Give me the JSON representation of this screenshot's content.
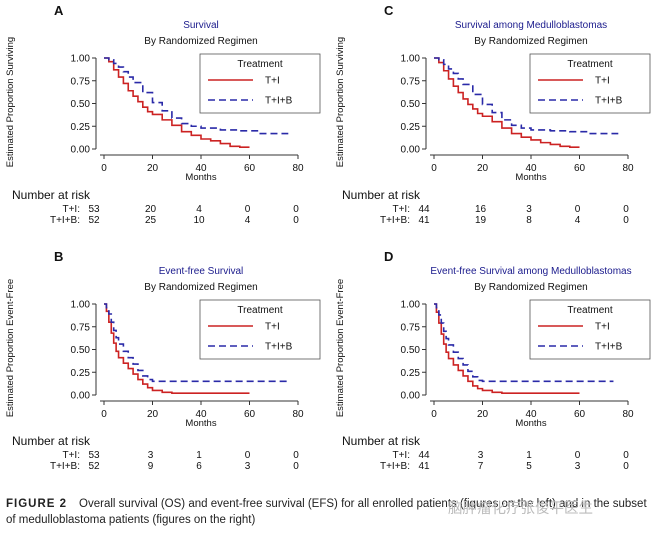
{
  "legend_title": "Treatment",
  "x_axis_label": "Months",
  "risk_title": "Number at risk",
  "colors": {
    "ti": "#cc2222",
    "tib": "#2a2aa8",
    "axis": "#333333"
  },
  "chart_data": [
    {
      "type": "line",
      "panel": "A",
      "title": "Survival",
      "subtitle": "By Randomized Regimen",
      "ylabel": "Estimated Proportion Surviving",
      "xlabel": "Months",
      "xlim": [
        0,
        80
      ],
      "ylim": [
        0,
        1
      ],
      "xticks": [
        "0",
        "20",
        "40",
        "60",
        "80"
      ],
      "yticks": [
        "0.00",
        "0.25",
        "0.50",
        "0.75",
        "1.00"
      ],
      "series": [
        {
          "name": "T+I",
          "label": "T+I:",
          "risk": [
            "53",
            "20",
            "4",
            "0",
            "0"
          ],
          "x": [
            0,
            2,
            4,
            6,
            8,
            10,
            12,
            14,
            16,
            18,
            20,
            24,
            28,
            32,
            36,
            40,
            44,
            48,
            52,
            56,
            60
          ],
          "y": [
            1.0,
            0.96,
            0.87,
            0.79,
            0.72,
            0.64,
            0.58,
            0.52,
            0.46,
            0.41,
            0.38,
            0.32,
            0.26,
            0.19,
            0.15,
            0.11,
            0.09,
            0.06,
            0.03,
            0.02,
            0.02
          ]
        },
        {
          "name": "T+I+B",
          "label": "T+I+B:",
          "risk": [
            "52",
            "25",
            "10",
            "4",
            "0"
          ],
          "x": [
            0,
            2,
            4,
            6,
            8,
            10,
            12,
            16,
            20,
            24,
            28,
            32,
            36,
            40,
            48,
            56,
            64,
            76
          ],
          "y": [
            1.0,
            0.98,
            0.94,
            0.9,
            0.85,
            0.79,
            0.73,
            0.62,
            0.51,
            0.42,
            0.34,
            0.28,
            0.25,
            0.23,
            0.21,
            0.2,
            0.17,
            0.17
          ]
        }
      ]
    },
    {
      "type": "line",
      "panel": "C",
      "title": "Survival among Medulloblastomas",
      "subtitle": "By Randomized Regimen",
      "ylabel": "Estimated Proportion Surviving",
      "xlabel": "Months",
      "xlim": [
        0,
        80
      ],
      "ylim": [
        0,
        1
      ],
      "xticks": [
        "0",
        "20",
        "40",
        "60",
        "80"
      ],
      "yticks": [
        "0.00",
        "0.25",
        "0.50",
        "0.75",
        "1.00"
      ],
      "series": [
        {
          "name": "T+I",
          "label": "T+I:",
          "risk": [
            "44",
            "16",
            "3",
            "0",
            "0"
          ],
          "x": [
            0,
            2,
            4,
            6,
            8,
            10,
            12,
            14,
            16,
            18,
            20,
            24,
            28,
            32,
            36,
            40,
            44,
            48,
            52,
            56,
            60
          ],
          "y": [
            1.0,
            0.95,
            0.86,
            0.77,
            0.69,
            0.62,
            0.55,
            0.49,
            0.44,
            0.39,
            0.36,
            0.3,
            0.23,
            0.17,
            0.13,
            0.1,
            0.07,
            0.05,
            0.03,
            0.02,
            0.02
          ]
        },
        {
          "name": "T+I+B",
          "label": "T+I+B:",
          "risk": [
            "41",
            "19",
            "8",
            "4",
            "0"
          ],
          "x": [
            0,
            2,
            4,
            6,
            8,
            10,
            12,
            16,
            20,
            24,
            28,
            32,
            36,
            40,
            48,
            56,
            64,
            76
          ],
          "y": [
            1.0,
            0.98,
            0.93,
            0.88,
            0.83,
            0.77,
            0.71,
            0.6,
            0.49,
            0.4,
            0.32,
            0.26,
            0.23,
            0.21,
            0.2,
            0.19,
            0.17,
            0.17
          ]
        }
      ]
    },
    {
      "type": "line",
      "panel": "B",
      "title": "Event-free Survival",
      "subtitle": "By Randomized Regimen",
      "ylabel": "Estimated Proportion Event-Free",
      "xlabel": "Months",
      "xlim": [
        0,
        80
      ],
      "ylim": [
        0,
        1
      ],
      "xticks": [
        "0",
        "20",
        "40",
        "60",
        "80"
      ],
      "yticks": [
        "0.00",
        "0.25",
        "0.50",
        "0.75",
        "1.00"
      ],
      "series": [
        {
          "name": "T+I",
          "label": "T+I:",
          "risk": [
            "53",
            "3",
            "1",
            "0",
            "0"
          ],
          "x": [
            0,
            1,
            2,
            3,
            4,
            5,
            6,
            8,
            10,
            12,
            14,
            16,
            18,
            20,
            24,
            28,
            40,
            60
          ],
          "y": [
            1.0,
            0.92,
            0.8,
            0.68,
            0.57,
            0.48,
            0.41,
            0.35,
            0.29,
            0.23,
            0.17,
            0.12,
            0.08,
            0.05,
            0.03,
            0.02,
            0.02,
            0.02
          ]
        },
        {
          "name": "T+I+B",
          "label": "T+I+B:",
          "risk": [
            "52",
            "9",
            "6",
            "3",
            "0"
          ],
          "x": [
            0,
            1,
            2,
            3,
            4,
            5,
            6,
            8,
            10,
            12,
            14,
            16,
            18,
            20,
            24,
            30,
            40,
            60,
            76
          ],
          "y": [
            1.0,
            0.96,
            0.89,
            0.8,
            0.71,
            0.63,
            0.56,
            0.48,
            0.41,
            0.34,
            0.27,
            0.21,
            0.17,
            0.15,
            0.15,
            0.15,
            0.15,
            0.15,
            0.15
          ]
        }
      ]
    },
    {
      "type": "line",
      "panel": "D",
      "title": "Event-free Survival among Medulloblastomas",
      "subtitle": "By Randomized Regimen",
      "ylabel": "Estimated Proportion Event-Free",
      "xlabel": "Months",
      "xlim": [
        0,
        80
      ],
      "ylim": [
        0,
        1
      ],
      "xticks": [
        "0",
        "20",
        "40",
        "60",
        "80"
      ],
      "yticks": [
        "0.00",
        "0.25",
        "0.50",
        "0.75",
        "1.00"
      ],
      "series": [
        {
          "name": "T+I",
          "label": "T+I:",
          "risk": [
            "44",
            "3",
            "1",
            "0",
            "0"
          ],
          "x": [
            0,
            1,
            2,
            3,
            4,
            5,
            6,
            8,
            10,
            12,
            14,
            16,
            18,
            20,
            24,
            28,
            40,
            60
          ],
          "y": [
            1.0,
            0.91,
            0.79,
            0.67,
            0.56,
            0.47,
            0.4,
            0.33,
            0.27,
            0.21,
            0.15,
            0.1,
            0.07,
            0.05,
            0.03,
            0.02,
            0.02,
            0.02
          ]
        },
        {
          "name": "T+I+B",
          "label": "T+I+B:",
          "risk": [
            "41",
            "7",
            "5",
            "3",
            "0"
          ],
          "x": [
            0,
            1,
            2,
            3,
            4,
            5,
            6,
            8,
            10,
            12,
            14,
            16,
            18,
            20,
            24,
            30,
            40,
            60,
            74
          ],
          "y": [
            1.0,
            0.96,
            0.88,
            0.79,
            0.7,
            0.62,
            0.55,
            0.47,
            0.4,
            0.33,
            0.26,
            0.2,
            0.16,
            0.15,
            0.15,
            0.15,
            0.15,
            0.15,
            0.15
          ]
        }
      ]
    }
  ],
  "caption": {
    "label": "FIGURE 2",
    "text": "Overall survival (OS) and event-free survival (EFS) for all enrolled patients (figures on the left) and in the subset of medulloblastoma patients (figures on the right)"
  },
  "watermark": "脑肿瘤化疗张俊平医生"
}
